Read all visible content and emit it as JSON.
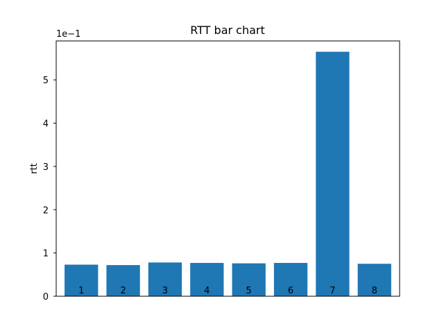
{
  "chart_data": {
    "type": "bar",
    "title": "RTT bar chart",
    "xlabel": "",
    "ylabel": "rtt",
    "offset_label": "1e−1",
    "categories": [
      "1",
      "2",
      "3",
      "4",
      "5",
      "6",
      "7",
      "8"
    ],
    "values": [
      0.073,
      0.072,
      0.078,
      0.077,
      0.076,
      0.077,
      0.565,
      0.075
    ],
    "ylim": [
      0,
      0.59
    ],
    "yticks": [
      0,
      0.1,
      0.2,
      0.3,
      0.4,
      0.5
    ],
    "ytick_labels": [
      "0",
      "1",
      "2",
      "3",
      "4",
      "5"
    ],
    "grid": false,
    "bar_color": "#1f77b4",
    "category_labels_inside_bars": true
  }
}
